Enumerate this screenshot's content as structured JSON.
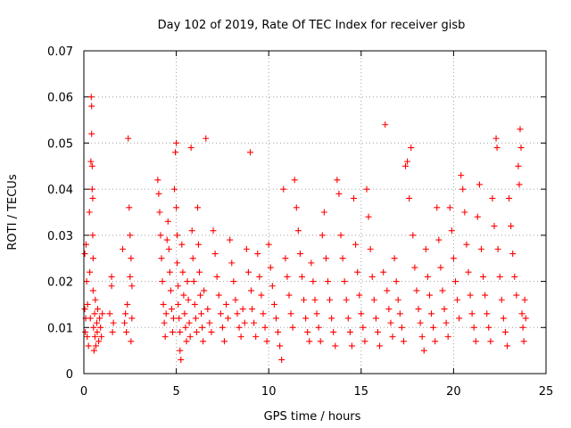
{
  "chart_data": {
    "type": "scatter",
    "title": "Day 102 of 2019, Rate Of TEC Index for receiver gisb",
    "xlabel": "GPS time / hours",
    "ylabel": "ROTI / TECUs",
    "xlim": [
      0,
      25
    ],
    "ylim": [
      0,
      0.07
    ],
    "xticks": [
      0,
      5,
      10,
      15,
      20,
      25
    ],
    "yticks": [
      0,
      0.01,
      0.02,
      0.03,
      0.04,
      0.05,
      0.06,
      0.07
    ],
    "xtick_labels": [
      "0",
      "5",
      "10",
      "15",
      "20",
      "25"
    ],
    "ytick_labels": [
      "0",
      "0.01",
      "0.02",
      "0.03",
      "0.04",
      "0.05",
      "0.06",
      "0.07"
    ],
    "grid": true,
    "marker": "+",
    "color": "#ff0000",
    "series": [
      {
        "name": "ROTI",
        "points": [
          [
            0.05,
            0.026
          ],
          [
            0.05,
            0.014
          ],
          [
            0.08,
            0.009
          ],
          [
            0.1,
            0.012
          ],
          [
            0.12,
            0.028
          ],
          [
            0.15,
            0.02
          ],
          [
            0.18,
            0.008
          ],
          [
            0.2,
            0.015
          ],
          [
            0.25,
            0.006
          ],
          [
            0.3,
            0.035
          ],
          [
            0.32,
            0.022
          ],
          [
            0.35,
            0.012
          ],
          [
            0.38,
            0.046
          ],
          [
            0.4,
            0.06
          ],
          [
            0.42,
            0.058
          ],
          [
            0.42,
            0.052
          ],
          [
            0.45,
            0.045
          ],
          [
            0.45,
            0.04
          ],
          [
            0.48,
            0.038
          ],
          [
            0.48,
            0.03
          ],
          [
            0.5,
            0.025
          ],
          [
            0.5,
            0.018
          ],
          [
            0.52,
            0.01
          ],
          [
            0.55,
            0.005
          ],
          [
            0.58,
            0.013
          ],
          [
            0.6,
            0.008
          ],
          [
            0.62,
            0.016
          ],
          [
            0.65,
            0.006
          ],
          [
            0.7,
            0.011
          ],
          [
            0.72,
            0.009
          ],
          [
            0.75,
            0.014
          ],
          [
            0.8,
            0.007
          ],
          [
            0.85,
            0.012
          ],
          [
            0.9,
            0.01
          ],
          [
            0.95,
            0.008
          ],
          [
            1.0,
            0.013
          ],
          [
            1.4,
            0.013
          ],
          [
            1.5,
            0.019
          ],
          [
            1.6,
            0.011
          ],
          [
            1.5,
            0.021
          ],
          [
            1.55,
            0.009
          ],
          [
            2.1,
            0.027
          ],
          [
            2.2,
            0.011
          ],
          [
            2.25,
            0.013
          ],
          [
            2.3,
            0.009
          ],
          [
            2.35,
            0.015
          ],
          [
            2.4,
            0.051
          ],
          [
            2.5,
            0.03
          ],
          [
            2.55,
            0.025
          ],
          [
            2.5,
            0.021
          ],
          [
            2.6,
            0.019
          ],
          [
            2.45,
            0.036
          ],
          [
            2.55,
            0.007
          ],
          [
            2.6,
            0.012
          ],
          [
            4.0,
            0.042
          ],
          [
            4.05,
            0.039
          ],
          [
            4.1,
            0.035
          ],
          [
            4.15,
            0.03
          ],
          [
            4.2,
            0.025
          ],
          [
            4.25,
            0.02
          ],
          [
            4.3,
            0.015
          ],
          [
            4.35,
            0.011
          ],
          [
            4.4,
            0.008
          ],
          [
            4.45,
            0.013
          ],
          [
            4.5,
            0.029
          ],
          [
            4.55,
            0.033
          ],
          [
            4.6,
            0.027
          ],
          [
            4.65,
            0.022
          ],
          [
            4.7,
            0.018
          ],
          [
            4.75,
            0.014
          ],
          [
            4.8,
            0.009
          ],
          [
            4.85,
            0.012
          ],
          [
            4.9,
            0.04
          ],
          [
            4.95,
            0.048
          ],
          [
            5.0,
            0.05
          ],
          [
            5.0,
            0.036
          ],
          [
            5.05,
            0.03
          ],
          [
            5.05,
            0.024
          ],
          [
            5.1,
            0.019
          ],
          [
            5.1,
            0.015
          ],
          [
            5.15,
            0.012
          ],
          [
            5.2,
            0.009
          ],
          [
            5.2,
            0.005
          ],
          [
            5.25,
            0.003
          ],
          [
            5.3,
            0.028
          ],
          [
            5.35,
            0.022
          ],
          [
            5.4,
            0.017
          ],
          [
            5.45,
            0.013
          ],
          [
            5.5,
            0.01
          ],
          [
            5.55,
            0.007
          ],
          [
            5.6,
            0.02
          ],
          [
            5.65,
            0.016
          ],
          [
            5.7,
            0.011
          ],
          [
            5.75,
            0.008
          ],
          [
            5.8,
            0.049
          ],
          [
            5.85,
            0.031
          ],
          [
            5.9,
            0.025
          ],
          [
            5.95,
            0.02
          ],
          [
            6.0,
            0.015
          ],
          [
            6.05,
            0.012
          ],
          [
            6.1,
            0.009
          ],
          [
            6.15,
            0.036
          ],
          [
            6.2,
            0.028
          ],
          [
            6.25,
            0.022
          ],
          [
            6.3,
            0.017
          ],
          [
            6.35,
            0.013
          ],
          [
            6.4,
            0.01
          ],
          [
            6.45,
            0.007
          ],
          [
            6.5,
            0.018
          ],
          [
            6.6,
            0.051
          ],
          [
            6.7,
            0.014
          ],
          [
            6.8,
            0.011
          ],
          [
            6.9,
            0.009
          ],
          [
            7.0,
            0.031
          ],
          [
            7.1,
            0.026
          ],
          [
            7.2,
            0.021
          ],
          [
            7.3,
            0.017
          ],
          [
            7.4,
            0.013
          ],
          [
            7.5,
            0.01
          ],
          [
            7.6,
            0.007
          ],
          [
            7.7,
            0.015
          ],
          [
            7.8,
            0.012
          ],
          [
            7.9,
            0.029
          ],
          [
            8.0,
            0.024
          ],
          [
            8.1,
            0.02
          ],
          [
            8.2,
            0.016
          ],
          [
            8.3,
            0.013
          ],
          [
            8.4,
            0.01
          ],
          [
            8.5,
            0.008
          ],
          [
            8.6,
            0.014
          ],
          [
            8.7,
            0.011
          ],
          [
            8.8,
            0.027
          ],
          [
            8.9,
            0.022
          ],
          [
            9.0,
            0.048
          ],
          [
            9.05,
            0.018
          ],
          [
            9.1,
            0.014
          ],
          [
            9.2,
            0.011
          ],
          [
            9.3,
            0.008
          ],
          [
            9.4,
            0.026
          ],
          [
            9.5,
            0.021
          ],
          [
            9.6,
            0.017
          ],
          [
            9.7,
            0.013
          ],
          [
            9.8,
            0.01
          ],
          [
            9.9,
            0.007
          ],
          [
            10.0,
            0.028
          ],
          [
            10.1,
            0.023
          ],
          [
            10.2,
            0.019
          ],
          [
            10.3,
            0.015
          ],
          [
            10.4,
            0.012
          ],
          [
            10.5,
            0.009
          ],
          [
            10.6,
            0.006
          ],
          [
            10.7,
            0.003
          ],
          [
            10.8,
            0.04
          ],
          [
            10.9,
            0.025
          ],
          [
            11.0,
            0.021
          ],
          [
            11.1,
            0.017
          ],
          [
            11.2,
            0.013
          ],
          [
            11.3,
            0.01
          ],
          [
            11.4,
            0.042
          ],
          [
            11.5,
            0.036
          ],
          [
            11.6,
            0.031
          ],
          [
            11.7,
            0.026
          ],
          [
            11.8,
            0.021
          ],
          [
            11.9,
            0.016
          ],
          [
            12.0,
            0.012
          ],
          [
            12.1,
            0.009
          ],
          [
            12.2,
            0.007
          ],
          [
            12.3,
            0.024
          ],
          [
            12.4,
            0.02
          ],
          [
            12.5,
            0.016
          ],
          [
            12.6,
            0.013
          ],
          [
            12.7,
            0.01
          ],
          [
            12.8,
            0.007
          ],
          [
            12.9,
            0.03
          ],
          [
            13.0,
            0.035
          ],
          [
            13.1,
            0.025
          ],
          [
            13.2,
            0.02
          ],
          [
            13.3,
            0.016
          ],
          [
            13.4,
            0.012
          ],
          [
            13.5,
            0.009
          ],
          [
            13.6,
            0.006
          ],
          [
            13.7,
            0.042
          ],
          [
            13.8,
            0.039
          ],
          [
            13.9,
            0.03
          ],
          [
            14.0,
            0.025
          ],
          [
            14.1,
            0.02
          ],
          [
            14.2,
            0.016
          ],
          [
            14.3,
            0.012
          ],
          [
            14.4,
            0.009
          ],
          [
            14.5,
            0.006
          ],
          [
            14.6,
            0.038
          ],
          [
            14.7,
            0.028
          ],
          [
            14.8,
            0.022
          ],
          [
            14.9,
            0.017
          ],
          [
            15.0,
            0.013
          ],
          [
            15.1,
            0.01
          ],
          [
            15.2,
            0.007
          ],
          [
            15.3,
            0.04
          ],
          [
            15.4,
            0.034
          ],
          [
            15.5,
            0.027
          ],
          [
            15.6,
            0.021
          ],
          [
            15.7,
            0.016
          ],
          [
            15.8,
            0.012
          ],
          [
            15.9,
            0.009
          ],
          [
            16.0,
            0.006
          ],
          [
            16.2,
            0.022
          ],
          [
            16.3,
            0.054
          ],
          [
            16.4,
            0.018
          ],
          [
            16.5,
            0.014
          ],
          [
            16.6,
            0.011
          ],
          [
            16.7,
            0.008
          ],
          [
            16.8,
            0.025
          ],
          [
            16.9,
            0.02
          ],
          [
            17.0,
            0.016
          ],
          [
            17.1,
            0.013
          ],
          [
            17.2,
            0.01
          ],
          [
            17.3,
            0.007
          ],
          [
            17.4,
            0.045
          ],
          [
            17.5,
            0.046
          ],
          [
            17.6,
            0.038
          ],
          [
            17.7,
            0.049
          ],
          [
            17.8,
            0.03
          ],
          [
            17.9,
            0.023
          ],
          [
            18.0,
            0.018
          ],
          [
            18.1,
            0.014
          ],
          [
            18.2,
            0.011
          ],
          [
            18.3,
            0.008
          ],
          [
            18.4,
            0.005
          ],
          [
            18.5,
            0.027
          ],
          [
            18.6,
            0.021
          ],
          [
            18.7,
            0.017
          ],
          [
            18.8,
            0.013
          ],
          [
            18.9,
            0.01
          ],
          [
            19.0,
            0.007
          ],
          [
            19.1,
            0.036
          ],
          [
            19.2,
            0.029
          ],
          [
            19.3,
            0.023
          ],
          [
            19.4,
            0.018
          ],
          [
            19.5,
            0.014
          ],
          [
            19.6,
            0.011
          ],
          [
            19.7,
            0.008
          ],
          [
            19.8,
            0.036
          ],
          [
            19.9,
            0.031
          ],
          [
            20.0,
            0.025
          ],
          [
            20.1,
            0.02
          ],
          [
            20.2,
            0.016
          ],
          [
            20.3,
            0.012
          ],
          [
            20.4,
            0.043
          ],
          [
            20.5,
            0.04
          ],
          [
            20.6,
            0.035
          ],
          [
            20.7,
            0.028
          ],
          [
            20.8,
            0.022
          ],
          [
            20.9,
            0.017
          ],
          [
            21.0,
            0.013
          ],
          [
            21.1,
            0.01
          ],
          [
            21.2,
            0.007
          ],
          [
            21.3,
            0.034
          ],
          [
            21.4,
            0.041
          ],
          [
            21.5,
            0.027
          ],
          [
            21.6,
            0.021
          ],
          [
            21.7,
            0.017
          ],
          [
            21.8,
            0.013
          ],
          [
            21.9,
            0.01
          ],
          [
            22.0,
            0.007
          ],
          [
            22.1,
            0.038
          ],
          [
            22.2,
            0.032
          ],
          [
            22.3,
            0.051
          ],
          [
            22.35,
            0.049
          ],
          [
            22.4,
            0.027
          ],
          [
            22.5,
            0.021
          ],
          [
            22.6,
            0.016
          ],
          [
            22.7,
            0.012
          ],
          [
            22.8,
            0.009
          ],
          [
            22.9,
            0.006
          ],
          [
            23.0,
            0.038
          ],
          [
            23.1,
            0.032
          ],
          [
            23.2,
            0.026
          ],
          [
            23.3,
            0.021
          ],
          [
            23.4,
            0.017
          ],
          [
            23.5,
            0.045
          ],
          [
            23.55,
            0.041
          ],
          [
            23.6,
            0.053
          ],
          [
            23.65,
            0.049
          ],
          [
            23.7,
            0.013
          ],
          [
            23.75,
            0.01
          ],
          [
            23.8,
            0.007
          ],
          [
            23.85,
            0.016
          ],
          [
            23.9,
            0.012
          ]
        ]
      }
    ]
  }
}
